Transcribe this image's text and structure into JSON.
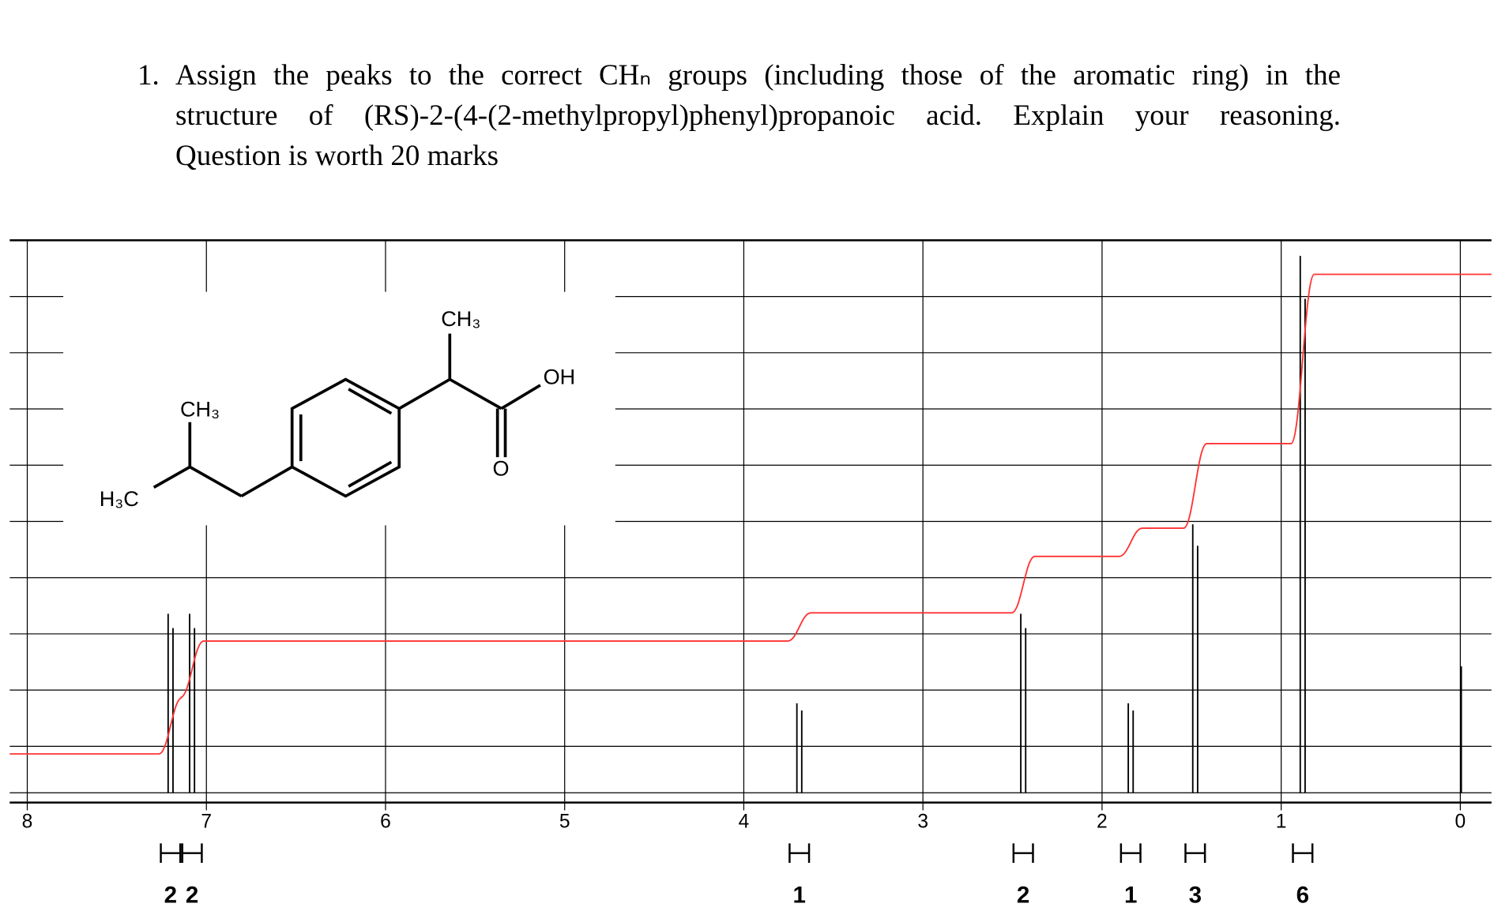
{
  "question": {
    "number": "1.",
    "lines": [
      "Assign the peaks to the correct CHₙ groups (including those of the aromatic ring) in the",
      "structure of (RS)-2-(4-(2-methylpropyl)phenyl)propanoic acid. Explain your reasoning.",
      "Question is worth 20 marks"
    ]
  },
  "chart_data": {
    "type": "nmr",
    "xlim": [
      8,
      0
    ],
    "xticks": [
      8,
      7,
      6,
      5,
      4,
      3,
      2,
      1,
      0
    ],
    "grid": true,
    "peaks": [
      {
        "shift": 7.2,
        "integration": 2
      },
      {
        "shift": 7.08,
        "integration": 2
      },
      {
        "shift": 3.69,
        "integration": 1
      },
      {
        "shift": 2.44,
        "integration": 2
      },
      {
        "shift": 1.84,
        "integration": 1
      },
      {
        "shift": 1.48,
        "integration": 3
      },
      {
        "shift": 0.88,
        "integration": 6
      }
    ],
    "peak_color": "#000000",
    "integral_color": "#ff3333",
    "structure_labels": {
      "ch3_top": "CH₃",
      "oh": "OH",
      "o": "O",
      "ch3_left": "CH₃",
      "h3c": "H₃C"
    }
  }
}
